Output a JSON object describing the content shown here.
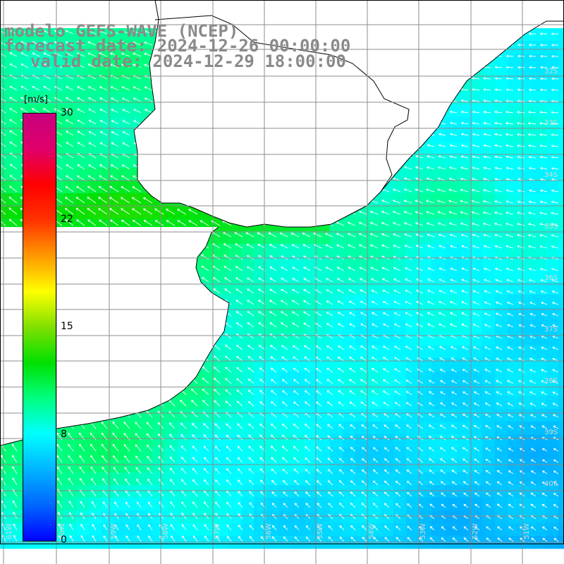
{
  "title": {
    "line1": "modelo GEFS-WAVE (NCEP)",
    "line2": "forecast date: 2024-12-26 00:00:00",
    "line3": "valid date: 2024-12-29 18:00:00"
  },
  "colorbar": {
    "unit": "[m/s]",
    "ticks": [
      "30",
      "22",
      "15",
      "8",
      "0"
    ],
    "tick_values": [
      30,
      22,
      15,
      8,
      0
    ],
    "min": 0,
    "max": 30,
    "colors": [
      "#0000ff",
      "#0066ff",
      "#00b4ff",
      "#00ffff",
      "#00ff80",
      "#00e000",
      "#80e000",
      "#ffff00",
      "#ff9900",
      "#ff3300",
      "#ff0000",
      "#e0006a",
      "#c8007e"
    ]
  },
  "map": {
    "field": "wind speed",
    "units": "m/s",
    "lat_labels": [
      "32S",
      "33S",
      "34S",
      "35S",
      "36S",
      "37S",
      "38S",
      "39S",
      "40S"
    ],
    "lon_labels": [
      "61W",
      "60W",
      "59W",
      "58W",
      "57W",
      "56W",
      "55W",
      "54W",
      "53W",
      "52W",
      "51W"
    ],
    "land_color": "#ffffff",
    "coast_color": "#000000",
    "grid_color": "#8c8c8c"
  }
}
